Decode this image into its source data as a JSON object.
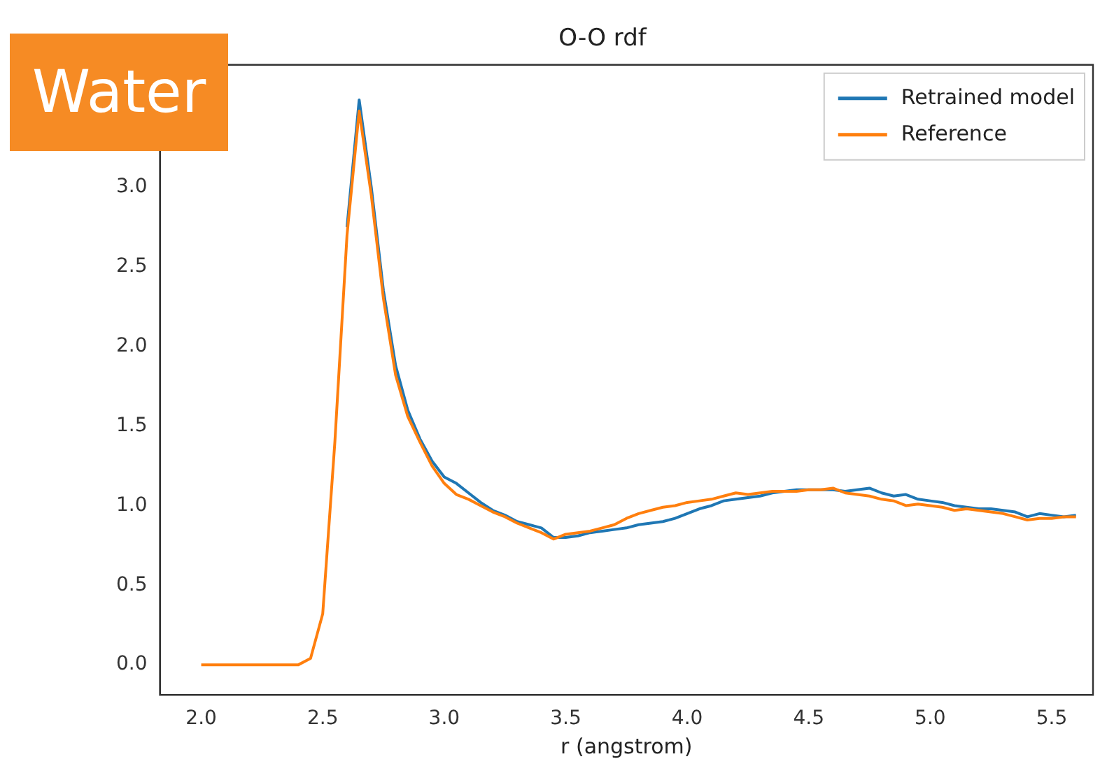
{
  "chart_data": {
    "type": "line",
    "title": "O-O rdf",
    "xlabel": "r (angstrom)",
    "annotations": [
      "Water"
    ],
    "x": [
      2.0,
      2.05,
      2.1,
      2.15,
      2.2,
      2.25,
      2.3,
      2.35,
      2.4,
      2.45,
      2.5,
      2.55,
      2.6,
      2.65,
      2.7,
      2.75,
      2.8,
      2.85,
      2.9,
      2.95,
      3.0,
      3.05,
      3.1,
      3.15,
      3.2,
      3.25,
      3.3,
      3.35,
      3.4,
      3.45,
      3.5,
      3.55,
      3.6,
      3.65,
      3.7,
      3.75,
      3.8,
      3.85,
      3.9,
      3.95,
      4.0,
      4.05,
      4.1,
      4.15,
      4.2,
      4.25,
      4.3,
      4.35,
      4.4,
      4.45,
      4.5,
      4.55,
      4.6,
      4.65,
      4.7,
      4.75,
      4.8,
      4.85,
      4.9,
      4.95,
      5.0,
      5.05,
      5.1,
      5.15,
      5.2,
      5.25,
      5.3,
      5.35,
      5.4,
      5.45,
      5.5,
      5.55,
      5.6
    ],
    "series": [
      {
        "name": "Retrained model",
        "color": "#1f77b4",
        "values": [
          null,
          null,
          null,
          null,
          null,
          null,
          null,
          null,
          null,
          null,
          null,
          null,
          2.75,
          3.55,
          3.0,
          2.35,
          1.88,
          1.6,
          1.42,
          1.28,
          1.18,
          1.14,
          1.08,
          1.02,
          0.97,
          0.94,
          0.9,
          0.88,
          0.86,
          0.8,
          0.8,
          0.81,
          0.83,
          0.84,
          0.85,
          0.86,
          0.88,
          0.89,
          0.9,
          0.92,
          0.95,
          0.98,
          1.0,
          1.03,
          1.04,
          1.05,
          1.06,
          1.08,
          1.09,
          1.1,
          1.1,
          1.1,
          1.1,
          1.09,
          1.1,
          1.11,
          1.08,
          1.06,
          1.07,
          1.04,
          1.03,
          1.02,
          1.0,
          0.99,
          0.98,
          0.98,
          0.97,
          0.96,
          0.93,
          0.95,
          0.94,
          0.93,
          0.94
        ]
      },
      {
        "name": "Reference",
        "color": "#ff7f0e",
        "values": [
          0,
          0,
          0,
          0,
          0,
          0,
          0,
          0,
          0,
          0.04,
          0.32,
          1.4,
          2.7,
          3.48,
          2.95,
          2.3,
          1.82,
          1.56,
          1.4,
          1.25,
          1.14,
          1.07,
          1.04,
          1.0,
          0.96,
          0.93,
          0.89,
          0.86,
          0.83,
          0.79,
          0.82,
          0.83,
          0.84,
          0.86,
          0.88,
          0.92,
          0.95,
          0.97,
          0.99,
          1.0,
          1.02,
          1.03,
          1.04,
          1.06,
          1.08,
          1.07,
          1.08,
          1.09,
          1.09,
          1.09,
          1.1,
          1.1,
          1.11,
          1.08,
          1.07,
          1.06,
          1.04,
          1.03,
          1.0,
          1.01,
          1.0,
          0.99,
          0.97,
          0.98,
          0.97,
          0.96,
          0.95,
          0.93,
          0.91,
          0.92,
          0.92,
          0.93,
          0.93
        ]
      }
    ],
    "xlim": [
      1.83,
      5.67
    ],
    "xticks": [
      {
        "value": 2,
        "label": "2.0"
      },
      2.5,
      {
        "value": 3,
        "label": "3.0"
      },
      3.5,
      {
        "value": 4,
        "label": "4.0"
      },
      4.5,
      {
        "value": 5,
        "label": "5.0"
      },
      5.5
    ],
    "ylim": [
      -0.19,
      3.77
    ],
    "yticks": [
      {
        "value": 0,
        "label": "0.0"
      },
      0.5,
      {
        "value": 1,
        "label": "1.0"
      },
      1.5,
      {
        "value": 2,
        "label": "2.0"
      },
      2.5,
      {
        "value": 3,
        "label": "3.0"
      }
    ],
    "legend": "top right",
    "grid": false,
    "marker": "none",
    "line_style": "solid"
  }
}
